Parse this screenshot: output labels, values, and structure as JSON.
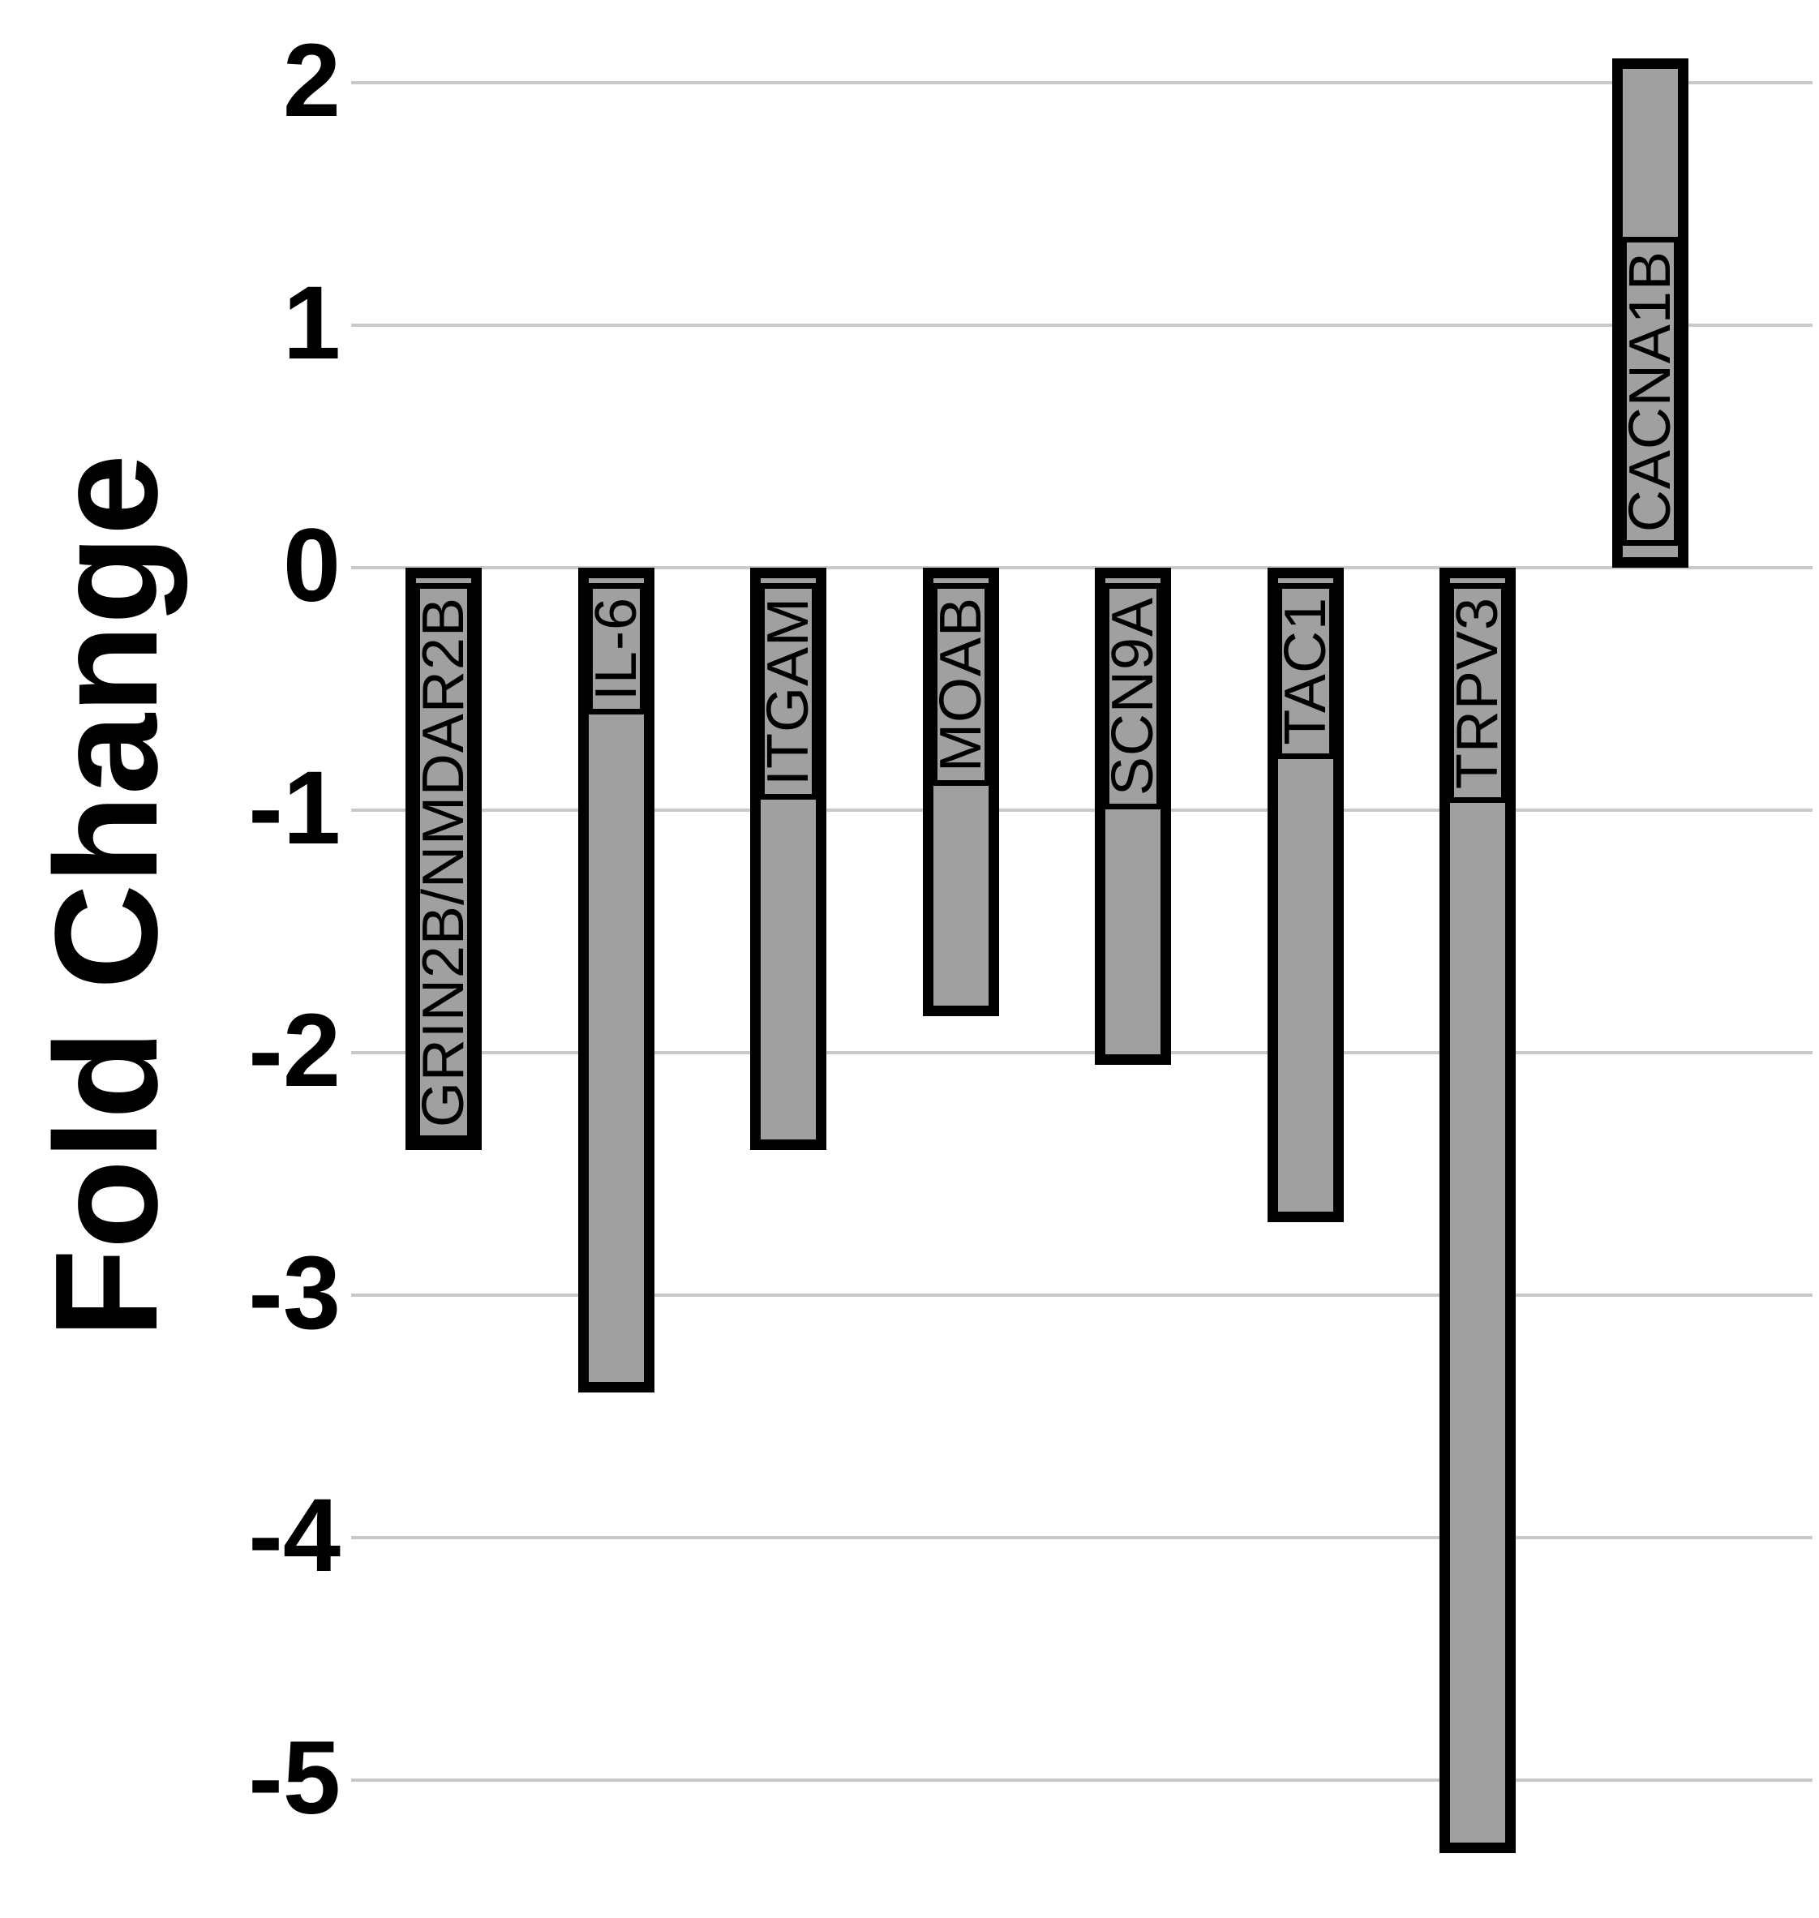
{
  "chart_data": {
    "type": "bar",
    "title": "",
    "xlabel": "",
    "ylabel": "Fold Change",
    "categories": [
      "GRIN2B/NMDAR2B",
      "IL-6",
      "ITGAM",
      "MOAB",
      "SCN9A",
      "TAC1",
      "TRPV3",
      "CACNA1B"
    ],
    "values": [
      -2.4,
      -3.4,
      -2.4,
      -1.85,
      -2.05,
      -2.7,
      -5.3,
      2.1
    ],
    "yticks": [
      2,
      1,
      0,
      -1,
      -2,
      -3,
      -4,
      -5
    ],
    "ylim": [
      -5.6,
      2.15
    ],
    "legend": "none",
    "grid": "horizontal",
    "colors": {
      "bar_fill": "#a0a0a0",
      "bar_border": "#000000",
      "label_box_fill": "#a0a0a0",
      "label_box_border": "#000000",
      "gridline": "#c9c9c9",
      "text": "#000000",
      "background": "#ffffff"
    }
  }
}
